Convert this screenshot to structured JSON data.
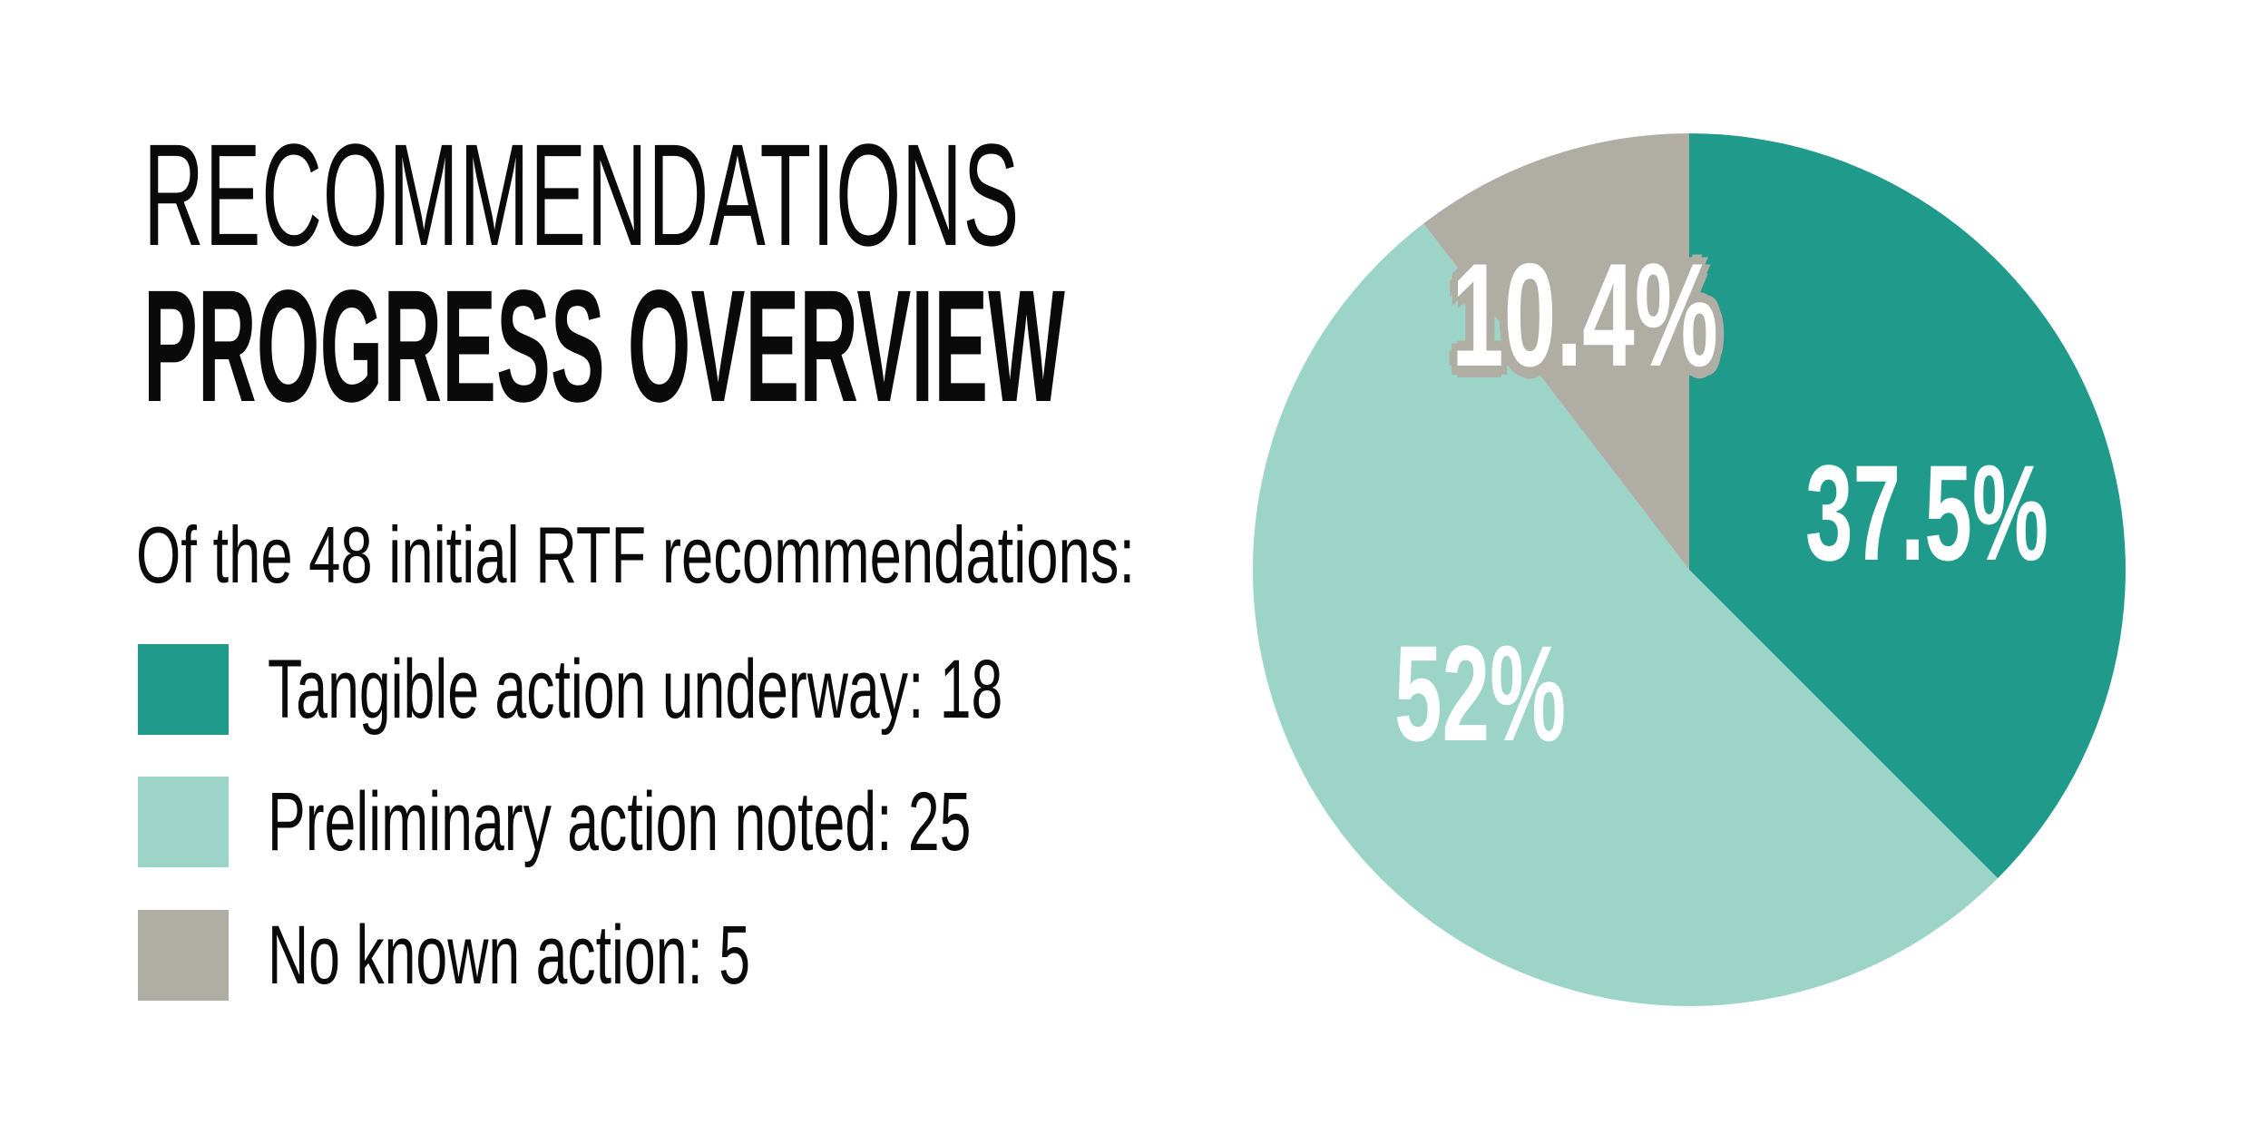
{
  "page": {
    "background": "#ffffff",
    "text_color": "#0a0a0a"
  },
  "title": {
    "line1": "RECOMMENDATIONS",
    "line2": "PROGRESS OVERVIEW"
  },
  "subtitle": {
    "text": "Of the 48 initial RTF recommendations:"
  },
  "legend": {
    "items": [
      {
        "label": "Tangible action underway: 18",
        "color": "#1f9a8b"
      },
      {
        "label": "Preliminary action noted: 25",
        "color": "#9cd4c7"
      },
      {
        "label": "No known action: 5",
        "color": "#b0ada4"
      }
    ]
  },
  "chart_data": {
    "type": "pie",
    "title": "Recommendations Progress Overview",
    "subtitle": "Of the 48 initial RTF recommendations:",
    "total": 48,
    "categories": [
      "Tangible action underway",
      "Preliminary action noted",
      "No known action"
    ],
    "values": [
      18,
      25,
      5
    ],
    "percentages": [
      37.5,
      52.1,
      10.4
    ],
    "percent_labels": [
      "37.5%",
      "52%",
      "10.4%"
    ],
    "colors": [
      "#1f9a8b",
      "#9cd4c7",
      "#b0ada4"
    ],
    "slice_label_color": "#ffffff",
    "halo_color_for_small_slice_label": "#b0ada4",
    "start_angle_deg": 0,
    "direction": "clockwise",
    "legend_position": "left",
    "labels_inside": true
  }
}
